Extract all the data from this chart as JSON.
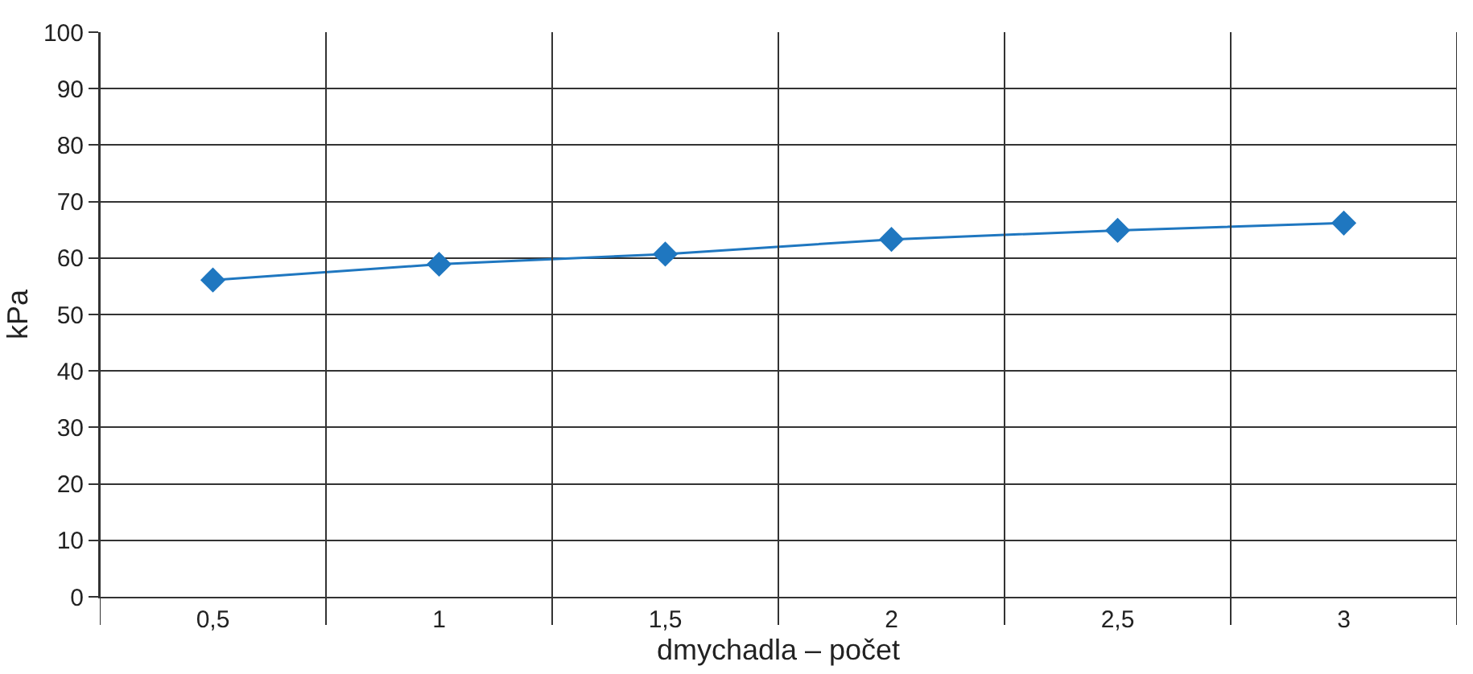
{
  "chart_data": {
    "type": "line",
    "xlabel": "dmychadla – počet",
    "ylabel": "kPa",
    "categories": [
      "0,5",
      "1",
      "1,5",
      "2",
      "2,5",
      "3"
    ],
    "series": [
      {
        "color": "#1f77c0",
        "values": [
          56.1,
          58.9,
          60.7,
          63.3,
          64.9,
          66.2
        ]
      }
    ],
    "ylim": [
      0,
      100
    ],
    "yticks": [
      0,
      10,
      20,
      30,
      40,
      50,
      60,
      70,
      80,
      90,
      100
    ],
    "grid": true,
    "marker": "diamond",
    "line_style": "solid"
  }
}
